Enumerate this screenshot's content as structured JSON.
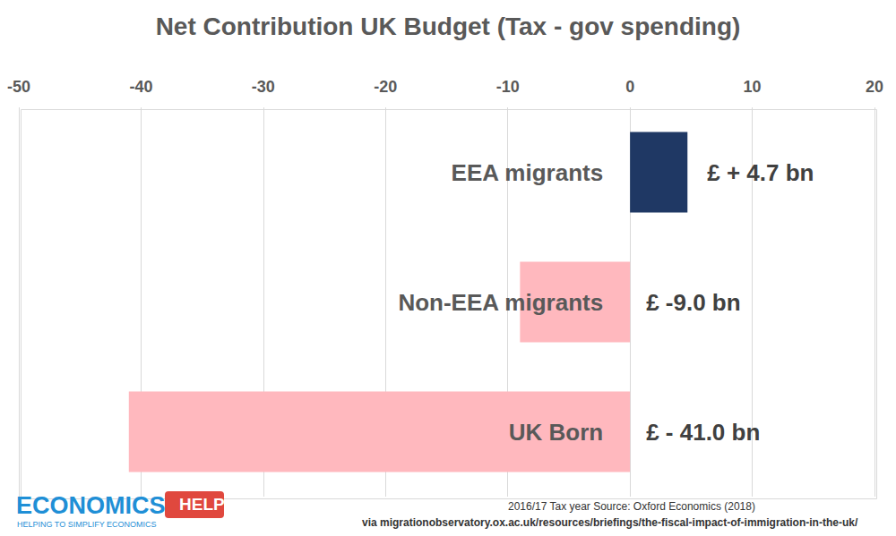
{
  "chart_data": {
    "type": "bar",
    "orientation": "horizontal",
    "title": "Net Contribution UK Budget (Tax - gov spending)",
    "categories": [
      "EEA migrants",
      "Non-EEA migrants",
      "UK Born"
    ],
    "values": [
      4.7,
      -9.0,
      -41.0
    ],
    "value_labels": [
      "£ + 4.7 bn",
      "£ -9.0 bn",
      "£ - 41.0 bn"
    ],
    "colors": [
      "#1f3864",
      "#ffb8be",
      "#ffb8be"
    ],
    "xlim": [
      -50,
      20
    ],
    "xticks": [
      -50,
      -40,
      -30,
      -20,
      -10,
      0,
      10,
      20
    ],
    "grid": true,
    "data_labels": true,
    "tick_labels": "x",
    "annotations": [
      "2016/17 Tax year Source: Oxford Economics (2018)",
      "via migrationobservatory.ox.ac.uk/resources/briefings/the-fiscal-impact-of-immigration-in-the-uk/"
    ],
    "logo": {
      "text": "ECONOMICS",
      "badge": "HELP",
      "tagline": "HELPING TO SIMPLIFY ECONOMICS"
    }
  }
}
